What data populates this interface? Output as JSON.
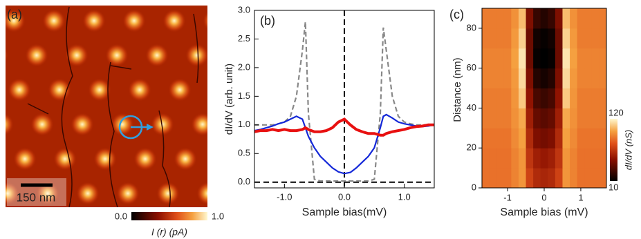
{
  "chart_data": [
    {
      "type": "image",
      "panel_label": "(a)",
      "scale_bar": "150 nm",
      "colorbar_ticks": [
        {
          "value": 0,
          "label": "0.0"
        },
        {
          "value": 1,
          "label": "1.0"
        }
      ],
      "colorbar_label": "I (r) (pA)"
    },
    {
      "type": "line",
      "panel_label": "(b)",
      "xlabel": "Sample bias(mV)",
      "ylabel": "dI/dV (arb. unit)",
      "x": [
        -1.5,
        -1.4,
        -1.3,
        -1.2,
        -1.1,
        -1.0,
        -0.9,
        -0.8,
        -0.7,
        -0.65,
        -0.6,
        -0.5,
        -0.4,
        -0.3,
        -0.2,
        -0.1,
        0,
        0.1,
        0.2,
        0.3,
        0.4,
        0.5,
        0.6,
        0.65,
        0.7,
        0.8,
        0.9,
        1.0,
        1.1,
        1.2,
        1.3,
        1.4,
        1.5
      ],
      "series": [
        {
          "color": "#888888",
          "dash": true,
          "values": [
            1.0,
            1.0,
            1.0,
            1.0,
            1.02,
            1.05,
            1.15,
            1.5,
            2.3,
            2.8,
            1.2,
            0.05,
            0.02,
            0.02,
            0.02,
            0.02,
            0.02,
            0.02,
            0.02,
            0.02,
            0.02,
            0.05,
            1.2,
            2.7,
            2.3,
            1.5,
            1.15,
            1.05,
            1.02,
            1.0,
            1.0,
            1.0,
            1.0
          ]
        },
        {
          "color": "#1428d8",
          "dash": false,
          "values": [
            0.9,
            0.92,
            0.95,
            0.98,
            1.02,
            1.05,
            1.1,
            1.15,
            1.1,
            0.95,
            0.8,
            0.6,
            0.45,
            0.35,
            0.25,
            0.18,
            0.15,
            0.17,
            0.25,
            0.35,
            0.45,
            0.6,
            0.95,
            1.15,
            1.18,
            1.12,
            1.05,
            1.02,
            1.0,
            0.98,
            0.97,
            0.98,
            1.0
          ]
        },
        {
          "color": "#e81010",
          "dash": false,
          "values": [
            0.88,
            0.9,
            0.9,
            0.92,
            0.9,
            0.92,
            0.9,
            0.9,
            0.92,
            0.95,
            0.92,
            0.88,
            0.88,
            0.9,
            0.95,
            1.05,
            1.1,
            1.0,
            0.92,
            0.88,
            0.85,
            0.85,
            0.82,
            0.82,
            0.85,
            0.88,
            0.9,
            0.92,
            0.95,
            0.97,
            0.98,
            1.0,
            1.0
          ]
        }
      ],
      "xlim": [
        -1.5,
        1.5
      ],
      "ylim": [
        -0.1,
        3.0
      ],
      "xticks": [
        {
          "value": -1,
          "label": "-1.0"
        },
        {
          "value": 0,
          "label": "0.0"
        },
        {
          "value": 1,
          "label": "1.0"
        }
      ],
      "yticks": [
        {
          "value": 0,
          "label": "0.0"
        },
        0.5,
        {
          "value": 1,
          "label": "1.0"
        },
        1.5,
        {
          "value": 2,
          "label": "2.0"
        },
        2.5,
        {
          "value": 3,
          "label": "3.0"
        }
      ]
    },
    {
      "type": "heatmap",
      "panel_label": "(c)",
      "xlabel": "Sample bias (mV)",
      "ylabel": "Distance (nm)",
      "x": [
        -1.6,
        -1.4,
        -1.2,
        -1.0,
        -0.8,
        -0.6,
        -0.4,
        -0.2,
        0,
        0.2,
        0.4,
        0.6,
        0.8,
        1.0,
        1.2,
        1.4,
        1.6
      ],
      "y": [
        5,
        15,
        25,
        35,
        45,
        55,
        65,
        75,
        85
      ],
      "z": [
        [
          85,
          85,
          85,
          85,
          90,
          95,
          70,
          60,
          58,
          60,
          70,
          95,
          90,
          85,
          85,
          85,
          85
        ],
        [
          85,
          85,
          85,
          85,
          90,
          95,
          65,
          55,
          52,
          55,
          65,
          95,
          90,
          85,
          85,
          85,
          85
        ],
        [
          86,
          86,
          86,
          86,
          92,
          98,
          60,
          45,
          42,
          45,
          60,
          98,
          92,
          86,
          86,
          86,
          86
        ],
        [
          88,
          88,
          88,
          88,
          94,
          100,
          55,
          38,
          35,
          38,
          55,
          100,
          94,
          88,
          88,
          88,
          88
        ],
        [
          88,
          88,
          88,
          88,
          95,
          108,
          50,
          30,
          26,
          30,
          50,
          108,
          95,
          88,
          88,
          88,
          88
        ],
        [
          90,
          90,
          90,
          90,
          96,
          112,
          45,
          20,
          16,
          20,
          45,
          112,
          96,
          90,
          90,
          90,
          90
        ],
        [
          90,
          90,
          90,
          90,
          98,
          115,
          40,
          12,
          10,
          12,
          40,
          115,
          98,
          90,
          90,
          90,
          90
        ],
        [
          88,
          88,
          88,
          88,
          96,
          110,
          40,
          15,
          12,
          15,
          40,
          110,
          96,
          88,
          88,
          88,
          88
        ],
        [
          88,
          88,
          88,
          88,
          94,
          105,
          45,
          25,
          20,
          25,
          45,
          105,
          94,
          88,
          88,
          88,
          88
        ]
      ],
      "xlim": [
        -1.7,
        1.7
      ],
      "ylim": [
        0,
        90
      ],
      "xticks": [
        -1,
        0,
        1
      ],
      "yticks": [
        0,
        20,
        40,
        60,
        80
      ],
      "colorbar_ticks": [
        10,
        120
      ],
      "colorbar_label": "dI/dV (nS)"
    }
  ]
}
